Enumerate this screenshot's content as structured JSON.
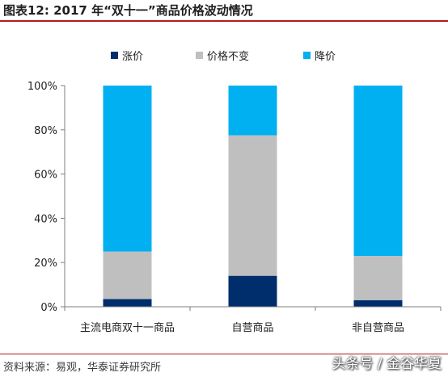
{
  "header": {
    "title": "图表12:   2017 年“双十一”商品价格波动情况"
  },
  "footer": {
    "source": "资料来源：易观，华泰证券研究所",
    "watermark": "头条号 / 金谷华夏"
  },
  "chart_data": {
    "type": "bar",
    "stacked": true,
    "categories": [
      "主流电商双十一商品",
      "自营商品",
      "非自营商品"
    ],
    "series": [
      {
        "name": "涨价",
        "color": "#002d6b",
        "values": [
          3.5,
          14,
          3
        ]
      },
      {
        "name": "价格不变",
        "color": "#bfbfbf",
        "values": [
          21.5,
          63.5,
          20
        ]
      },
      {
        "name": "降价",
        "color": "#00b0f0",
        "values": [
          75,
          22.5,
          77
        ]
      }
    ],
    "ylim": [
      0,
      100
    ],
    "yticks": [
      0,
      20,
      40,
      60,
      80,
      100
    ],
    "ytick_format": "percent",
    "legend_position": "top",
    "grid": false
  }
}
